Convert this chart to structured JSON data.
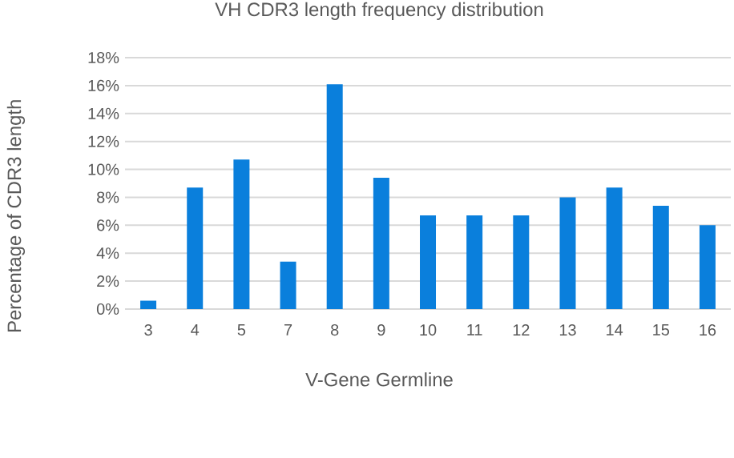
{
  "chart_data": {
    "type": "bar",
    "title": "VH CDR3 length frequency distribution",
    "xlabel": "V-Gene Germline",
    "ylabel": "Percentage of CDR3 length",
    "categories": [
      "3",
      "4",
      "5",
      "7",
      "8",
      "9",
      "10",
      "11",
      "12",
      "13",
      "14",
      "15",
      "16"
    ],
    "values": [
      0.6,
      8.7,
      10.7,
      3.4,
      16.1,
      9.4,
      6.7,
      6.7,
      6.7,
      8.0,
      8.7,
      7.4,
      6.0
    ],
    "color": "#0a7fdc",
    "ylim": [
      0,
      18
    ],
    "yticks": [
      {
        "value": 0,
        "label": "0%"
      },
      {
        "value": 2,
        "label": "2%"
      },
      {
        "value": 4,
        "label": "4%"
      },
      {
        "value": 6,
        "label": "6%"
      },
      {
        "value": 8,
        "label": "8%"
      },
      {
        "value": 10,
        "label": "10%"
      },
      {
        "value": 12,
        "label": "12%"
      },
      {
        "value": 14,
        "label": "14%"
      },
      {
        "value": 16,
        "label": "16%"
      },
      {
        "value": 18,
        "label": "18%"
      }
    ],
    "grid": "y",
    "legend": false
  }
}
